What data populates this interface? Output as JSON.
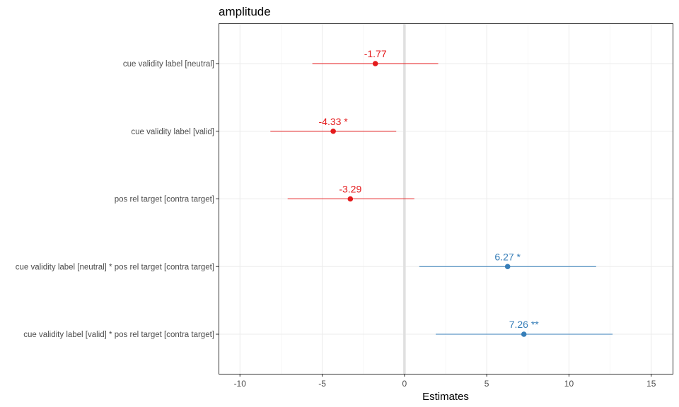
{
  "chart_data": {
    "type": "forest",
    "title": "amplitude",
    "xlabel": "Estimates",
    "ylabel": "",
    "xlim": [
      -11.3,
      16.3
    ],
    "x_ticks": [
      -10,
      -5,
      0,
      5,
      10,
      15
    ],
    "x_tick_labels": [
      "-10",
      "-5",
      "0",
      "5",
      "10",
      "15"
    ],
    "reference_line": 0,
    "grid": true,
    "colors": {
      "negative": "#e41a1c",
      "positive": "#377eb8"
    },
    "terms": [
      {
        "label": "cue validity label [neutral]",
        "estimate": -1.77,
        "ci": [
          -5.6,
          2.05
        ],
        "estimate_label": "-1.77",
        "direction": "negative"
      },
      {
        "label": "cue validity label [valid]",
        "estimate": -4.33,
        "ci": [
          -8.15,
          -0.5
        ],
        "estimate_label": "-4.33 *",
        "direction": "negative"
      },
      {
        "label": "pos rel target [contra target]",
        "estimate": -3.29,
        "ci": [
          -7.1,
          0.6
        ],
        "estimate_label": "-3.29",
        "direction": "negative"
      },
      {
        "label": "cue validity label [neutral] * pos rel target [contra target]",
        "estimate": 6.27,
        "ci": [
          0.9,
          11.65
        ],
        "estimate_label": "6.27 *",
        "direction": "positive"
      },
      {
        "label": "cue validity label [valid] * pos rel target [contra target]",
        "estimate": 7.26,
        "ci": [
          1.9,
          12.65
        ],
        "estimate_label": "7.26 **",
        "direction": "positive"
      }
    ]
  }
}
